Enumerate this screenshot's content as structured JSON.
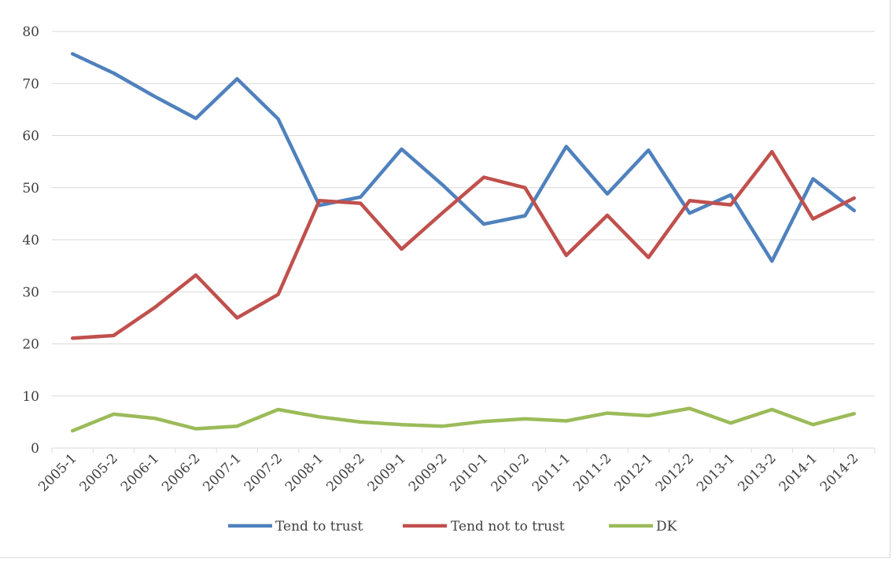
{
  "chart_data": {
    "type": "line",
    "title": "",
    "xlabel": "",
    "ylabel": "",
    "ylim": [
      0,
      80
    ],
    "yticks": [
      0,
      10,
      20,
      30,
      40,
      50,
      60,
      70,
      80
    ],
    "grid": true,
    "legend_position": "bottom",
    "categories": [
      "2005-1",
      "2005-2",
      "2006-1",
      "2006-2",
      "2007-1",
      "2007-2",
      "2008-1",
      "2008-2",
      "2009-1",
      "2009-2",
      "2010-1",
      "2010-2",
      "2011-1",
      "2011-2",
      "2012-1",
      "2012-2",
      "2013-1",
      "2013-2",
      "2014-1",
      "2014-2"
    ],
    "series": [
      {
        "name": "Tend to trust",
        "color": "#4f81bd",
        "values": [
          75.7,
          72.0,
          67.5,
          63.3,
          70.9,
          63.2,
          46.6,
          48.2,
          57.4,
          50.5,
          43.0,
          44.6,
          57.9,
          48.8,
          57.2,
          45.1,
          48.6,
          35.9,
          51.7,
          45.6
        ]
      },
      {
        "name": "Tend not to trust",
        "color": "#c0504d",
        "values": [
          21.1,
          21.6,
          27.0,
          33.2,
          25.0,
          29.5,
          47.5,
          47.0,
          38.2,
          45.2,
          52.0,
          50.0,
          37.0,
          44.7,
          36.6,
          47.5,
          46.7,
          56.9,
          44.0,
          48.0
        ]
      },
      {
        "name": "DK",
        "color": "#9bbb59",
        "values": [
          3.3,
          6.5,
          5.7,
          3.7,
          4.2,
          7.4,
          6.0,
          5.0,
          4.5,
          4.2,
          5.1,
          5.6,
          5.2,
          6.7,
          6.2,
          7.6,
          4.8,
          7.4,
          4.5,
          6.6
        ]
      }
    ]
  }
}
